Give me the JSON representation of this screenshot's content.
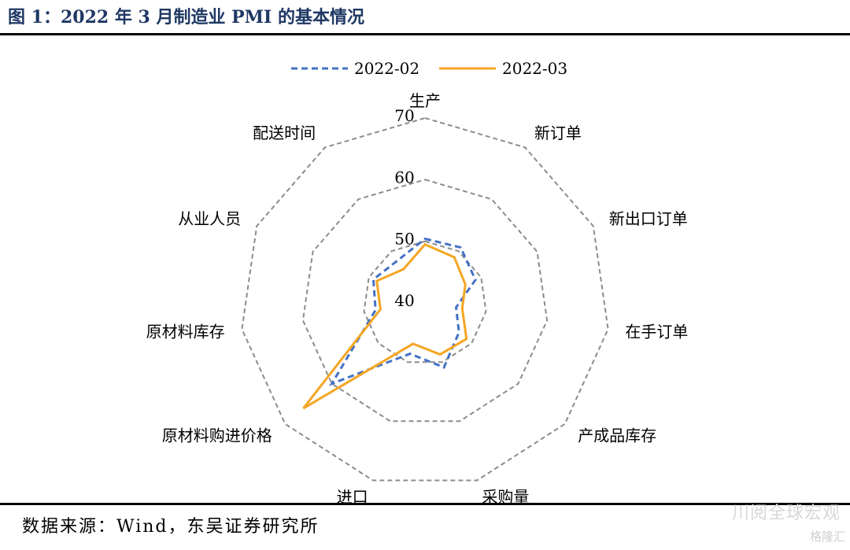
{
  "header": {
    "title": "图 1：2022 年 3 月制造业 PMI 的基本情况"
  },
  "footer": {
    "source": "数据来源：Wind，东吴证券研究所"
  },
  "watermark": {
    "text": "川阅全球宏观",
    "badge": "格隆汇"
  },
  "chart_data": {
    "type": "radar",
    "title": "",
    "categories": [
      "生产",
      "新订单",
      "新出口订单",
      "在手订单",
      "产成品库存",
      "采购量",
      "进口",
      "原材料购进价格",
      "原材料库存",
      "从业人员",
      "配送时间"
    ],
    "rlim": [
      40,
      70
    ],
    "rticks": [
      40,
      50,
      60,
      70
    ],
    "legend_position": "top",
    "grid": true,
    "series": [
      {
        "name": "2022-02",
        "color": "#4472c4",
        "style": "dashed",
        "values": [
          50.4,
          50.7,
          49.0,
          45.1,
          47.3,
          50.9,
          48.6,
          60.0,
          48.1,
          49.2,
          48.2
        ]
      },
      {
        "name": "2022-03",
        "color": "#f5a623",
        "style": "solid",
        "values": [
          49.5,
          48.8,
          47.2,
          46.1,
          48.9,
          48.7,
          46.9,
          66.1,
          47.3,
          48.6,
          46.5
        ]
      }
    ]
  }
}
